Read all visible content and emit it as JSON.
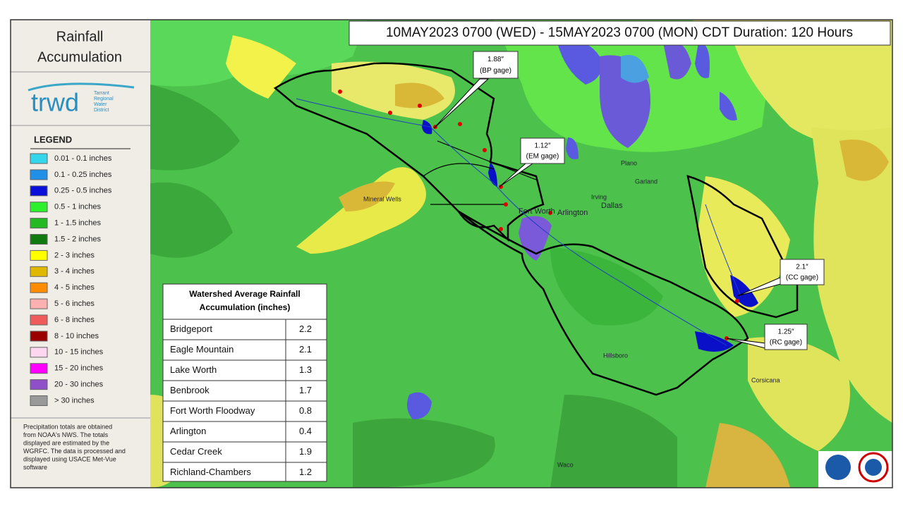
{
  "panel": {
    "title_lines": [
      "Rainfall",
      "Accumulation"
    ],
    "logo": {
      "word": "trwd",
      "org_lines": [
        "Tarrant",
        "Regional",
        "Water",
        "District"
      ]
    },
    "legend_title": "LEGEND",
    "legend": [
      {
        "label": "0.01 - 0.1 inches",
        "color": "#33d6ea"
      },
      {
        "label": "0.1 - 0.25 inches",
        "color": "#1f8fe8"
      },
      {
        "label": "0.25 - 0.5 inches",
        "color": "#0a10d8"
      },
      {
        "label": "0.5 - 1 inches",
        "color": "#2cf02c"
      },
      {
        "label": "1 - 1.5 inches",
        "color": "#22b922"
      },
      {
        "label": "1.5 - 2 inches",
        "color": "#107a10"
      },
      {
        "label": "2 - 3 inches",
        "color": "#ffff00"
      },
      {
        "label": "3 - 4 inches",
        "color": "#e0b800"
      },
      {
        "label": "4 - 5 inches",
        "color": "#ff8c00"
      },
      {
        "label": "5 - 6 inches",
        "color": "#ffb0b0"
      },
      {
        "label": "6 - 8 inches",
        "color": "#f05a5a"
      },
      {
        "label": "8 - 10 inches",
        "color": "#9a0000"
      },
      {
        "label": "10 - 15 inches",
        "color": "#ffd6f0"
      },
      {
        "label": "15 - 20 inches",
        "color": "#ff00ff"
      },
      {
        "label": "20 - 30 inches",
        "color": "#8f4fc8"
      },
      {
        "label": "> 30 inches",
        "color": "#999999"
      }
    ],
    "footnote_lines": [
      "Precipitation totals are obtained",
      "from NOAA's NWS. The totals",
      "displayed are estimated by the",
      "WGRFC. The data is processed and",
      "displayed using USACE Met-Vue",
      "software"
    ]
  },
  "header": "10MAY2023 0700 (WED) - 15MAY2023 0700 (MON) CDT Duration: 120 Hours",
  "table": {
    "title_lines": [
      "Watershed Average Rainfall",
      "Accumulation (inches)"
    ],
    "rows": [
      [
        "Bridgeport",
        2.2
      ],
      [
        "Eagle Mountain",
        2.1
      ],
      [
        "Lake Worth",
        1.3
      ],
      [
        "Benbrook",
        1.7
      ],
      [
        "Fort Worth Floodway",
        0.8
      ],
      [
        "Arlington",
        0.4
      ],
      [
        "Cedar Creek",
        1.9
      ],
      [
        "Richland-Chambers",
        1.2
      ]
    ]
  },
  "callouts": [
    {
      "value": "1.88″",
      "gage": "(BP gage)"
    },
    {
      "value": "1.12″",
      "gage": "(EM gage)"
    },
    {
      "value": "2.1″",
      "gage": "(CC gage)"
    },
    {
      "value": "1.25″",
      "gage": "(RC gage)"
    }
  ],
  "map_labels": [
    "Fort Worth",
    "Arlington",
    "Dallas",
    "Irving",
    "Plano",
    "Garland",
    "Waco",
    "Mineral Wells",
    "Hillsboro",
    "Corsicana"
  ]
}
